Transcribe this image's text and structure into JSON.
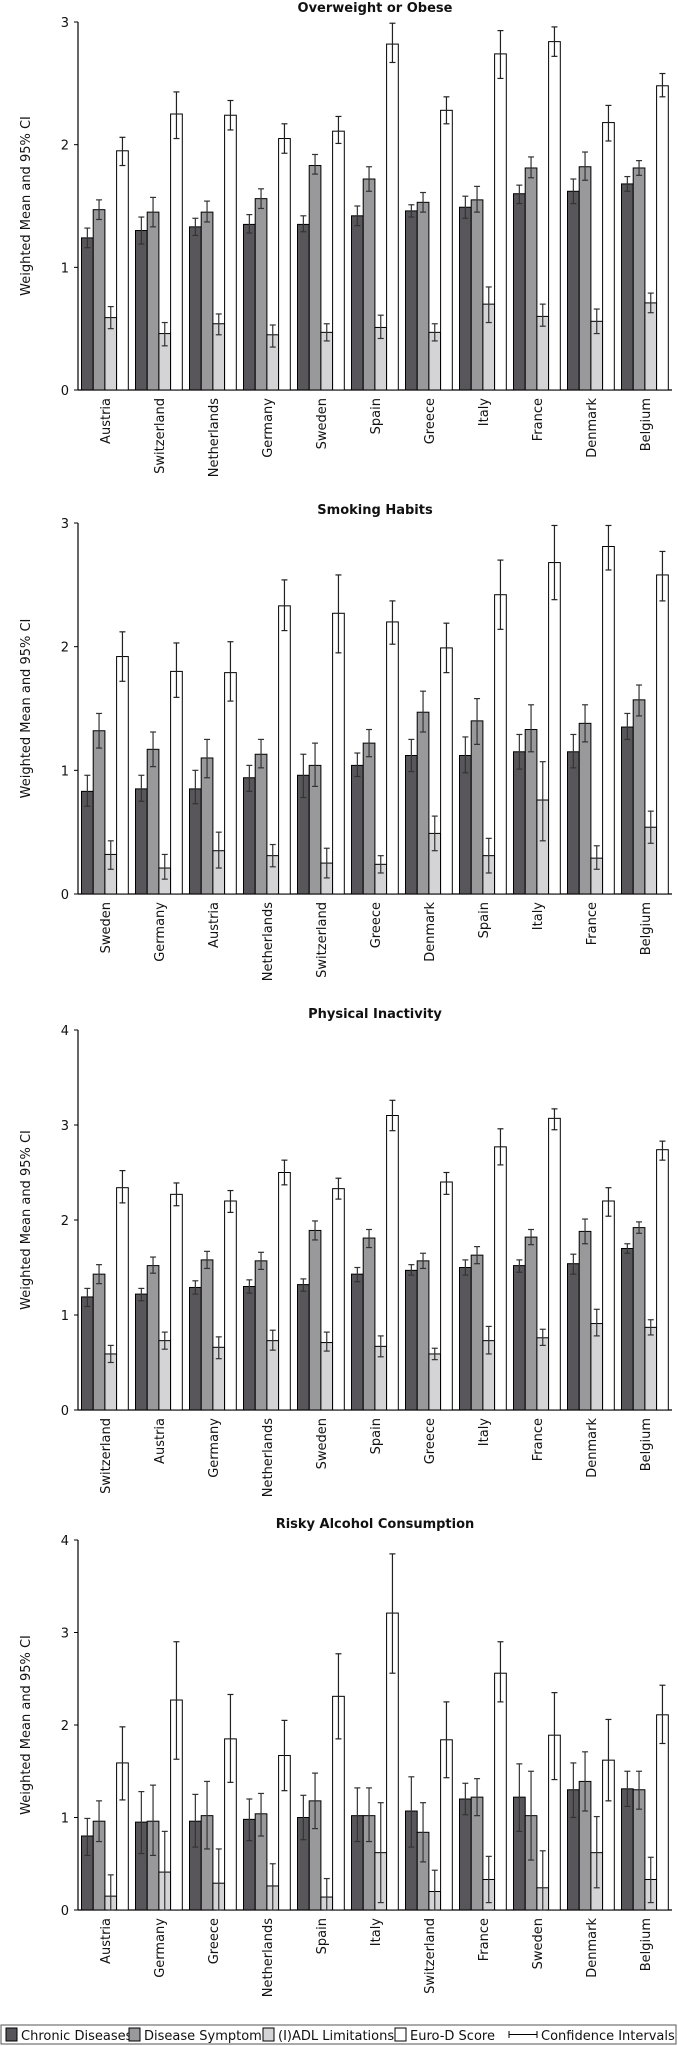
{
  "legend": {
    "items": [
      {
        "label": "Chronic Diseases",
        "color": "#58565a",
        "kind": "box"
      },
      {
        "label": "Disease Symptoms",
        "color": "#99989b",
        "kind": "box"
      },
      {
        "label": "(I)ADL Limitations",
        "color": "#d4d3d6",
        "kind": "box"
      },
      {
        "label": "Euro-D Score",
        "color": "#ffffff",
        "kind": "box"
      },
      {
        "label": "Confidence Intervals",
        "color": "#000000",
        "kind": "errorbar"
      }
    ]
  },
  "chart_data": [
    {
      "type": "bar",
      "title": "Overweight or Obese",
      "ylabel": "Weighted Mean and 95% CI",
      "xlabel": "",
      "ylim": [
        0,
        3
      ],
      "yticks": [
        0,
        1,
        2,
        3
      ],
      "grid": false,
      "categories": [
        "Austria",
        "Switzerland",
        "Netherlands",
        "Germany",
        "Sweden",
        "Spain",
        "Greece",
        "Italy",
        "France",
        "Denmark",
        "Belgium"
      ],
      "series": [
        {
          "name": "Chronic Diseases",
          "values": [
            1.24,
            1.3,
            1.33,
            1.35,
            1.35,
            1.42,
            1.46,
            1.49,
            1.6,
            1.62,
            1.68
          ],
          "ci_low": [
            1.16,
            1.19,
            1.26,
            1.28,
            1.29,
            1.34,
            1.41,
            1.4,
            1.52,
            1.52,
            1.62
          ],
          "ci_high": [
            1.32,
            1.41,
            1.4,
            1.43,
            1.42,
            1.5,
            1.51,
            1.58,
            1.67,
            1.72,
            1.74
          ]
        },
        {
          "name": "Disease Symptoms",
          "values": [
            1.47,
            1.45,
            1.45,
            1.56,
            1.83,
            1.72,
            1.53,
            1.55,
            1.81,
            1.82,
            1.81
          ],
          "ci_low": [
            1.39,
            1.33,
            1.37,
            1.48,
            1.76,
            1.62,
            1.45,
            1.45,
            1.73,
            1.71,
            1.75
          ],
          "ci_high": [
            1.55,
            1.57,
            1.54,
            1.64,
            1.92,
            1.82,
            1.61,
            1.66,
            1.9,
            1.94,
            1.87
          ]
        },
        {
          "name": "(I)ADL Limitations",
          "values": [
            0.59,
            0.46,
            0.54,
            0.45,
            0.47,
            0.51,
            0.47,
            0.7,
            0.6,
            0.56,
            0.71
          ],
          "ci_low": [
            0.5,
            0.36,
            0.45,
            0.35,
            0.4,
            0.42,
            0.4,
            0.55,
            0.52,
            0.46,
            0.63
          ],
          "ci_high": [
            0.68,
            0.55,
            0.62,
            0.53,
            0.54,
            0.61,
            0.54,
            0.84,
            0.7,
            0.66,
            0.79
          ]
        },
        {
          "name": "Euro-D Score",
          "values": [
            1.95,
            2.25,
            2.24,
            2.05,
            2.11,
            2.82,
            2.28,
            2.74,
            2.84,
            2.18,
            2.48
          ],
          "ci_low": [
            1.83,
            2.05,
            2.12,
            1.93,
            2.01,
            2.67,
            2.17,
            2.54,
            2.72,
            2.03,
            2.39
          ],
          "ci_high": [
            2.06,
            2.43,
            2.36,
            2.17,
            2.23,
            2.99,
            2.39,
            2.93,
            2.96,
            2.32,
            2.58
          ]
        }
      ]
    },
    {
      "type": "bar",
      "title": "Smoking Habits",
      "ylabel": "Weighted Mean and 95% CI",
      "xlabel": "",
      "ylim": [
        0,
        3
      ],
      "yticks": [
        0,
        1,
        2,
        3
      ],
      "grid": false,
      "categories": [
        "Sweden",
        "Germany",
        "Austria",
        "Netherlands",
        "Switzerland",
        "Greece",
        "Denmark",
        "Spain",
        "Italy",
        "France",
        "Belgium"
      ],
      "series": [
        {
          "name": "Chronic Diseases",
          "values": [
            0.83,
            0.85,
            0.85,
            0.94,
            0.96,
            1.04,
            1.12,
            1.12,
            1.15,
            1.15,
            1.35
          ],
          "ci_low": [
            0.71,
            0.75,
            0.73,
            0.83,
            0.78,
            0.95,
            0.99,
            0.98,
            1.01,
            1.02,
            1.25
          ],
          "ci_high": [
            0.96,
            0.96,
            1.0,
            1.04,
            1.13,
            1.14,
            1.25,
            1.27,
            1.29,
            1.29,
            1.46
          ]
        },
        {
          "name": "Disease Symptoms",
          "values": [
            1.32,
            1.17,
            1.1,
            1.13,
            1.04,
            1.22,
            1.47,
            1.4,
            1.33,
            1.38,
            1.57
          ],
          "ci_low": [
            1.18,
            1.03,
            0.94,
            1.02,
            0.87,
            1.11,
            1.31,
            1.21,
            1.15,
            1.23,
            1.44
          ],
          "ci_high": [
            1.46,
            1.31,
            1.25,
            1.25,
            1.22,
            1.33,
            1.64,
            1.58,
            1.53,
            1.53,
            1.69
          ]
        },
        {
          "name": "(I)ADL Limitations",
          "values": [
            0.32,
            0.21,
            0.35,
            0.31,
            0.25,
            0.24,
            0.49,
            0.31,
            0.76,
            0.29,
            0.54
          ],
          "ci_low": [
            0.2,
            0.12,
            0.21,
            0.22,
            0.13,
            0.17,
            0.35,
            0.17,
            0.43,
            0.2,
            0.41
          ],
          "ci_high": [
            0.43,
            0.32,
            0.5,
            0.4,
            0.37,
            0.31,
            0.63,
            0.45,
            1.07,
            0.39,
            0.67
          ]
        },
        {
          "name": "Euro-D Score",
          "values": [
            1.92,
            1.8,
            1.79,
            2.33,
            2.27,
            2.2,
            1.99,
            2.42,
            2.68,
            2.81,
            2.58
          ],
          "ci_low": [
            1.72,
            1.59,
            1.56,
            2.13,
            1.95,
            2.02,
            1.79,
            2.14,
            2.38,
            2.62,
            2.37
          ],
          "ci_high": [
            2.12,
            2.03,
            2.04,
            2.54,
            2.58,
            2.37,
            2.19,
            2.7,
            2.98,
            2.98,
            2.77
          ]
        }
      ]
    },
    {
      "type": "bar",
      "title": "Physical Inactivity",
      "ylabel": "Weighted Mean and 95% CI",
      "xlabel": "",
      "ylim": [
        0,
        4
      ],
      "yticks": [
        0,
        1,
        2,
        3,
        4
      ],
      "grid": false,
      "categories": [
        "Switzerland",
        "Austria",
        "Germany",
        "Netherlands",
        "Sweden",
        "Spain",
        "Greece",
        "Italy",
        "France",
        "Denmark",
        "Belgium"
      ],
      "series": [
        {
          "name": "Chronic Diseases",
          "values": [
            1.19,
            1.22,
            1.29,
            1.3,
            1.32,
            1.43,
            1.47,
            1.5,
            1.52,
            1.54,
            1.7
          ],
          "ci_low": [
            1.09,
            1.15,
            1.22,
            1.23,
            1.25,
            1.35,
            1.42,
            1.42,
            1.45,
            1.43,
            1.65
          ],
          "ci_high": [
            1.28,
            1.28,
            1.36,
            1.37,
            1.38,
            1.5,
            1.53,
            1.58,
            1.58,
            1.64,
            1.75
          ]
        },
        {
          "name": "Disease Symptoms",
          "values": [
            1.43,
            1.52,
            1.58,
            1.57,
            1.89,
            1.81,
            1.57,
            1.63,
            1.82,
            1.88,
            1.92
          ],
          "ci_low": [
            1.33,
            1.44,
            1.49,
            1.48,
            1.79,
            1.71,
            1.49,
            1.54,
            1.74,
            1.75,
            1.86
          ],
          "ci_high": [
            1.53,
            1.61,
            1.67,
            1.66,
            1.99,
            1.9,
            1.65,
            1.72,
            1.9,
            2.01,
            1.98
          ]
        },
        {
          "name": "(I)ADL Limitations",
          "values": [
            0.59,
            0.73,
            0.66,
            0.73,
            0.71,
            0.67,
            0.59,
            0.73,
            0.76,
            0.91,
            0.87
          ],
          "ci_low": [
            0.5,
            0.64,
            0.54,
            0.63,
            0.62,
            0.56,
            0.53,
            0.59,
            0.68,
            0.78,
            0.79
          ],
          "ci_high": [
            0.68,
            0.82,
            0.77,
            0.84,
            0.82,
            0.78,
            0.65,
            0.88,
            0.85,
            1.06,
            0.95
          ]
        },
        {
          "name": "Euro-D Score",
          "values": [
            2.34,
            2.27,
            2.2,
            2.5,
            2.33,
            3.1,
            2.4,
            2.77,
            3.07,
            2.2,
            2.74
          ],
          "ci_low": [
            2.18,
            2.15,
            2.08,
            2.37,
            2.22,
            2.94,
            2.27,
            2.58,
            2.95,
            2.04,
            2.63
          ],
          "ci_high": [
            2.52,
            2.39,
            2.31,
            2.63,
            2.44,
            3.26,
            2.5,
            2.96,
            3.17,
            2.34,
            2.83
          ]
        }
      ]
    },
    {
      "type": "bar",
      "title": "Risky Alcohol Consumption",
      "ylabel": "Weighted Mean and 95% CI",
      "xlabel": "",
      "ylim": [
        0,
        4
      ],
      "yticks": [
        0,
        1,
        2,
        3,
        4
      ],
      "grid": false,
      "categories": [
        "Austria",
        "Germany",
        "Greece",
        "Netherlands",
        "Spain",
        "Italy",
        "Switzerland",
        "France",
        "Sweden",
        "Denmark",
        "Belgium"
      ],
      "series": [
        {
          "name": "Chronic Diseases",
          "values": [
            0.8,
            0.95,
            0.96,
            0.98,
            1.0,
            1.02,
            1.07,
            1.2,
            1.22,
            1.3,
            1.31
          ],
          "ci_low": [
            0.59,
            0.61,
            0.68,
            0.75,
            0.76,
            0.74,
            0.68,
            1.03,
            0.85,
            1.0,
            1.12
          ],
          "ci_high": [
            0.99,
            1.28,
            1.25,
            1.2,
            1.24,
            1.32,
            1.44,
            1.37,
            1.58,
            1.59,
            1.5
          ]
        },
        {
          "name": "Disease Symptoms",
          "values": [
            0.96,
            0.96,
            1.02,
            1.04,
            1.18,
            1.02,
            0.84,
            1.22,
            1.02,
            1.39,
            1.3
          ],
          "ci_low": [
            0.74,
            0.59,
            0.66,
            0.8,
            0.88,
            0.74,
            0.52,
            1.02,
            0.54,
            1.07,
            1.09
          ],
          "ci_high": [
            1.18,
            1.35,
            1.39,
            1.26,
            1.48,
            1.32,
            1.16,
            1.42,
            1.5,
            1.71,
            1.5
          ]
        },
        {
          "name": "(I)ADL Limitations",
          "values": [
            0.15,
            0.41,
            0.29,
            0.26,
            0.14,
            0.62,
            0.2,
            0.33,
            0.24,
            0.62,
            0.33
          ],
          "ci_low": [
            0.0,
            0.0,
            0.0,
            0.0,
            0.0,
            0.08,
            0.0,
            0.08,
            0.0,
            0.24,
            0.08
          ],
          "ci_high": [
            0.38,
            0.85,
            0.66,
            0.5,
            0.34,
            1.16,
            0.43,
            0.58,
            0.64,
            1.01,
            0.57
          ]
        },
        {
          "name": "Euro-D Score",
          "values": [
            1.59,
            2.27,
            1.85,
            1.67,
            2.31,
            3.21,
            1.84,
            2.56,
            1.89,
            1.62,
            2.11
          ],
          "ci_low": [
            1.19,
            1.63,
            1.38,
            1.29,
            1.85,
            2.56,
            1.43,
            2.25,
            1.41,
            1.18,
            1.8
          ],
          "ci_high": [
            1.98,
            2.9,
            2.33,
            2.05,
            2.77,
            3.85,
            2.25,
            2.9,
            2.35,
            2.06,
            2.43
          ]
        }
      ]
    }
  ]
}
